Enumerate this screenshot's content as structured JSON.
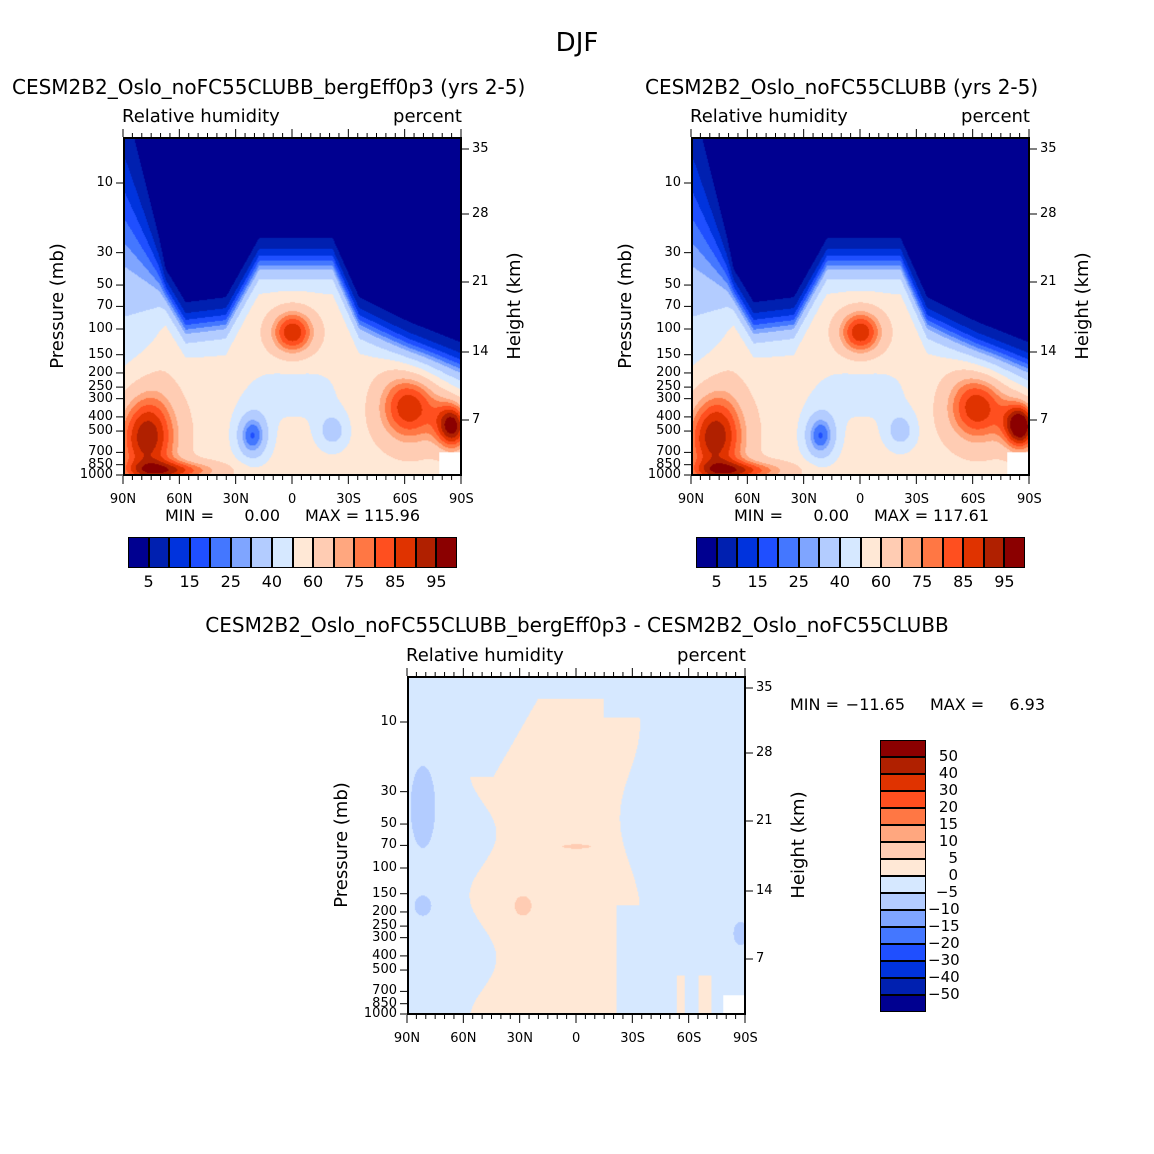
{
  "figure_title": "DJF",
  "chart_data": [
    {
      "type": "heatmap",
      "title": "CESM2B2_Oslo_noFC55CLUBB_bergEff0p3 (yrs 2-5)",
      "left_string": "Relative humidity",
      "right_string": "percent",
      "ylabel": "Pressure (mb)",
      "ylabel_right": "Height (km)",
      "xticks": [
        "90N",
        "60N",
        "30N",
        "0",
        "30S",
        "60S",
        "90S"
      ],
      "yticks": [
        10,
        30,
        50,
        70,
        100,
        150,
        200,
        250,
        300,
        400,
        500,
        700,
        850,
        1000
      ],
      "yticks_right": [
        35,
        28,
        21,
        14,
        7
      ],
      "stats": {
        "min_label": "MIN =",
        "min": "0.00",
        "max_label": "MAX =",
        "max": "115.96"
      },
      "levels": [
        5,
        10,
        15,
        20,
        25,
        30,
        40,
        50,
        60,
        70,
        75,
        80,
        85,
        90,
        95
      ],
      "colorbar_labels": [
        "5",
        "15",
        "25",
        "40",
        "60",
        "75",
        "85",
        "95"
      ]
    },
    {
      "type": "heatmap",
      "title": "CESM2B2_Oslo_noFC55CLUBB (yrs 2-5)",
      "left_string": "Relative humidity",
      "right_string": "percent",
      "ylabel": "Pressure (mb)",
      "ylabel_right": "Height (km)",
      "xticks": [
        "90N",
        "60N",
        "30N",
        "0",
        "30S",
        "60S",
        "90S"
      ],
      "yticks": [
        10,
        30,
        50,
        70,
        100,
        150,
        200,
        250,
        300,
        400,
        500,
        700,
        850,
        1000
      ],
      "yticks_right": [
        35,
        28,
        21,
        14,
        7
      ],
      "stats": {
        "min_label": "MIN =",
        "min": "0.00",
        "max_label": "MAX =",
        "max": "117.61"
      },
      "levels": [
        5,
        10,
        15,
        20,
        25,
        30,
        40,
        50,
        60,
        70,
        75,
        80,
        85,
        90,
        95
      ],
      "colorbar_labels": [
        "5",
        "15",
        "25",
        "40",
        "60",
        "75",
        "85",
        "95"
      ]
    },
    {
      "type": "heatmap",
      "title": "CESM2B2_Oslo_noFC55CLUBB_bergEff0p3 - CESM2B2_Oslo_noFC55CLUBB",
      "left_string": "Relative humidity",
      "right_string": "percent",
      "ylabel": "Pressure (mb)",
      "ylabel_right": "Height (km)",
      "xticks": [
        "90N",
        "60N",
        "30N",
        "0",
        "30S",
        "60S",
        "90S"
      ],
      "yticks": [
        10,
        30,
        50,
        70,
        100,
        150,
        200,
        250,
        300,
        400,
        500,
        700,
        850,
        1000
      ],
      "yticks_right": [
        35,
        28,
        21,
        14,
        7
      ],
      "stats": {
        "min_label": "MIN =",
        "min": "-11.65",
        "max_label": "MAX =",
        "max": "6.93"
      },
      "levels": [
        -50,
        -40,
        -30,
        -20,
        -15,
        -10,
        -5,
        0,
        5,
        10,
        15,
        20,
        30,
        40,
        50
      ],
      "colorbar_labels": [
        "50",
        "40",
        "30",
        "20",
        "15",
        "10",
        "5",
        "0",
        "-5",
        "-10",
        "-15",
        "-20",
        "-30",
        "-40",
        "-50"
      ]
    }
  ],
  "colors": [
    "#000090",
    "#0020b0",
    "#0033dd",
    "#1f4fff",
    "#4477ff",
    "#7fa5ff",
    "#b3ccff",
    "#d6e8ff",
    "#ffe8d6",
    "#ffccb3",
    "#ffa77f",
    "#ff7744",
    "#ff4f1f",
    "#e03300",
    "#b02000",
    "#8b0000"
  ]
}
